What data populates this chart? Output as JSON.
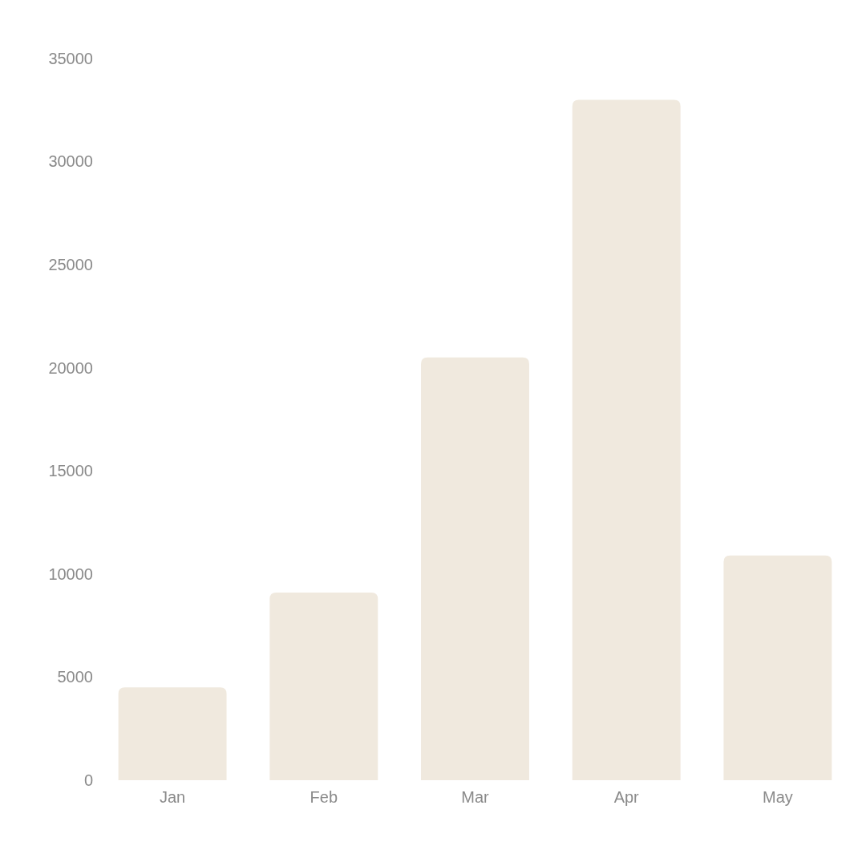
{
  "chart_data": {
    "type": "bar",
    "categories": [
      "Jan",
      "Feb",
      "Mar",
      "Apr",
      "May"
    ],
    "values": [
      4500,
      9100,
      20500,
      33000,
      10900
    ],
    "color": "#f0e9de",
    "ylim": [
      0,
      35000
    ],
    "yticks": [
      0,
      5000,
      10000,
      15000,
      20000,
      25000,
      30000,
      35000
    ],
    "grid": false
  }
}
